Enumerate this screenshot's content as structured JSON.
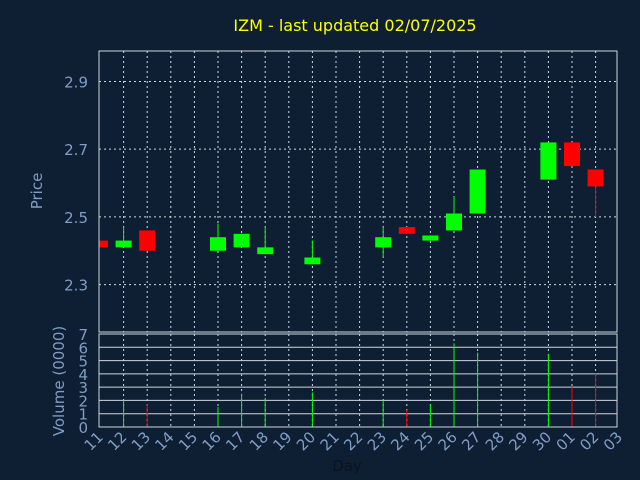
{
  "chart_data": [
    {
      "type": "candlestick",
      "title": "IZM - last updated 02/07/2025",
      "xlabel": "",
      "ylabel": "Price",
      "ylim": [
        2.16,
        2.99
      ],
      "yticks": [
        2.3,
        2.5,
        2.7,
        2.9
      ],
      "ytick_labels": [
        "2.3",
        "2.5",
        "2.7",
        "2.9"
      ],
      "grid": true,
      "x": [
        "11",
        "12",
        "13",
        "14",
        "15",
        "16",
        "17",
        "18",
        "19",
        "20",
        "21",
        "22",
        "23",
        "24",
        "25",
        "26",
        "27",
        "28",
        "29",
        "30",
        "01",
        "02",
        "03"
      ],
      "candles": [
        {
          "x": "11",
          "open": 2.43,
          "close": 2.41,
          "high": 2.43,
          "low": 2.41
        },
        {
          "x": "12",
          "open": 2.41,
          "close": 2.43,
          "high": 2.47,
          "low": 2.41
        },
        {
          "x": "13",
          "open": 2.46,
          "close": 2.4,
          "high": 2.46,
          "low": 2.4
        },
        {
          "x": "16",
          "open": 2.4,
          "close": 2.44,
          "high": 2.48,
          "low": 2.4
        },
        {
          "x": "17",
          "open": 2.41,
          "close": 2.45,
          "high": 2.45,
          "low": 2.41
        },
        {
          "x": "18",
          "open": 2.39,
          "close": 2.41,
          "high": 2.47,
          "low": 2.39
        },
        {
          "x": "20",
          "open": 2.36,
          "close": 2.38,
          "high": 2.43,
          "low": 2.36
        },
        {
          "x": "23",
          "open": 2.41,
          "close": 2.44,
          "high": 2.47,
          "low": 2.38
        },
        {
          "x": "24",
          "open": 2.47,
          "close": 2.45,
          "high": 2.47,
          "low": 2.45
        },
        {
          "x": "25",
          "open": 2.43,
          "close": 2.445,
          "high": 2.445,
          "low": 2.43
        },
        {
          "x": "26",
          "open": 2.46,
          "close": 2.51,
          "high": 2.56,
          "low": 2.46
        },
        {
          "x": "27",
          "open": 2.51,
          "close": 2.64,
          "high": 2.64,
          "low": 2.51
        },
        {
          "x": "30",
          "open": 2.61,
          "close": 2.72,
          "high": 2.72,
          "low": 2.61
        },
        {
          "x": "01",
          "open": 2.72,
          "close": 2.65,
          "high": 2.72,
          "low": 2.65
        },
        {
          "x": "02",
          "open": 2.64,
          "close": 2.59,
          "high": 2.64,
          "low": 2.5
        }
      ],
      "up_color": "#00ff00",
      "down_color": "#ff0000"
    },
    {
      "type": "bar",
      "title": "",
      "xlabel": "Day",
      "ylabel": "Volume (0000)",
      "ylim": [
        0,
        7
      ],
      "yticks": [
        0,
        1,
        2,
        3,
        4,
        5,
        6,
        7
      ],
      "ytick_labels": [
        "0",
        "1",
        "2",
        "3",
        "4",
        "5",
        "6",
        "7"
      ],
      "grid": true,
      "categories": [
        "11",
        "12",
        "13",
        "14",
        "15",
        "16",
        "17",
        "18",
        "19",
        "20",
        "21",
        "22",
        "23",
        "24",
        "25",
        "26",
        "27",
        "28",
        "29",
        "30",
        "01",
        "02",
        "03"
      ],
      "xtick_labels": [
        "11",
        "12",
        "13",
        "14",
        "15",
        "16",
        "17",
        "18",
        "19",
        "20",
        "21",
        "22",
        "23",
        "24",
        "25",
        "26",
        "27",
        "28",
        "29",
        "30",
        "01",
        "02",
        "03"
      ],
      "bars": [
        {
          "x": "12",
          "value": 2.0,
          "color": "#00ff00"
        },
        {
          "x": "13",
          "value": 1.7,
          "color": "#ff0000"
        },
        {
          "x": "16",
          "value": 1.5,
          "color": "#00ff00"
        },
        {
          "x": "17",
          "value": 2.5,
          "color": "#00ff00"
        },
        {
          "x": "18",
          "value": 2.2,
          "color": "#00ff00"
        },
        {
          "x": "20",
          "value": 2.6,
          "color": "#00ff00"
        },
        {
          "x": "23",
          "value": 2.0,
          "color": "#00ff00"
        },
        {
          "x": "24",
          "value": 1.3,
          "color": "#ff0000"
        },
        {
          "x": "25",
          "value": 1.7,
          "color": "#00ff00"
        },
        {
          "x": "26",
          "value": 6.3,
          "color": "#00ff00"
        },
        {
          "x": "27",
          "value": 5.6,
          "color": "#00ff00"
        },
        {
          "x": "30",
          "value": 5.5,
          "color": "#00ff00"
        },
        {
          "x": "01",
          "value": 3.0,
          "color": "#ff0000"
        },
        {
          "x": "02",
          "value": 4.0,
          "color": "#ff0000"
        }
      ]
    }
  ],
  "colors": {
    "background": "#0f1f33",
    "title_text": "#ffff00",
    "axis_text": "#7f9ec6",
    "frame": "#cfd6df",
    "grid": "#cfd6df"
  }
}
